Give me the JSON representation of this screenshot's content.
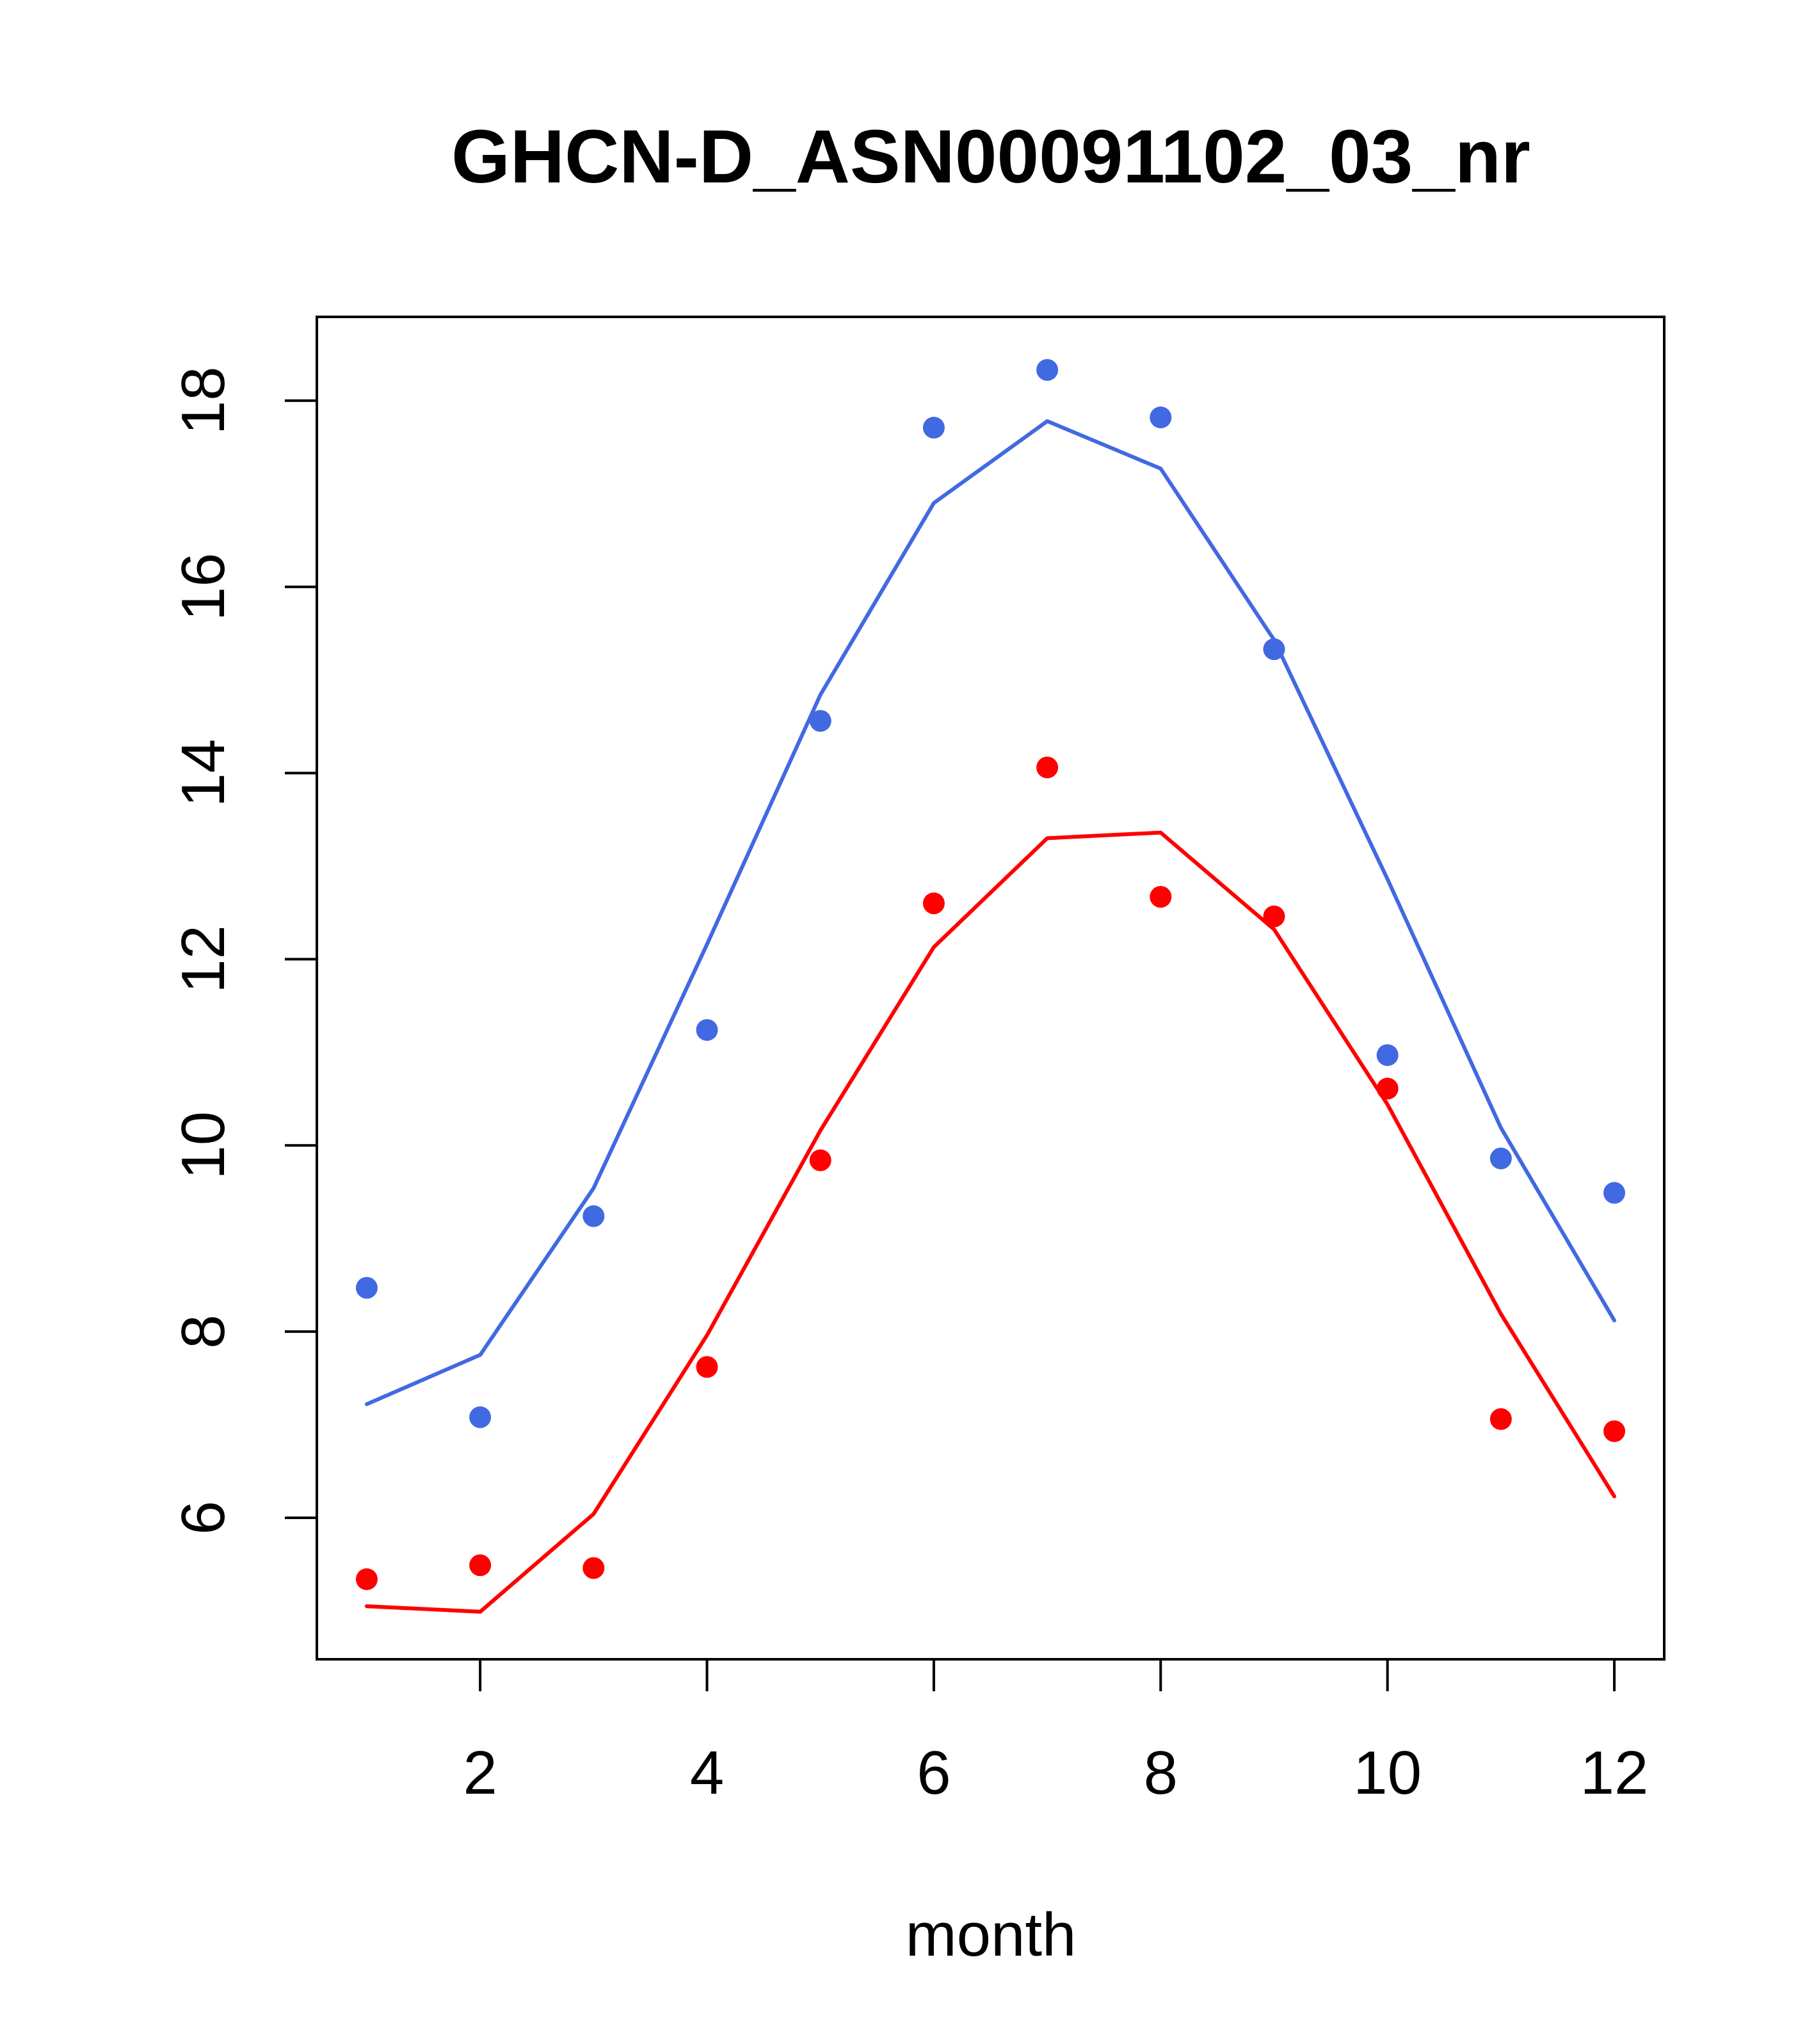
{
  "chart_data": {
    "type": "line",
    "title": "GHCN-D_ASN00091102_03_nr",
    "xlabel": "month",
    "ylabel": "",
    "xlim": [
      0.56,
      12.44
    ],
    "ylim": [
      4.48,
      18.9
    ],
    "xticks": [
      2,
      4,
      6,
      8,
      10,
      12
    ],
    "yticks": [
      6,
      8,
      10,
      12,
      14,
      16,
      18
    ],
    "grid": false,
    "legend": "none",
    "series": [
      {
        "color": "#4169E1",
        "points": {
          "x": [
            1,
            2,
            3,
            4,
            5,
            6,
            7,
            8,
            9,
            10,
            11,
            12
          ],
          "y": [
            8.47,
            7.08,
            9.24,
            11.24,
            14.56,
            17.71,
            18.33,
            17.82,
            15.33,
            10.97,
            9.86,
            9.49
          ]
        },
        "line": {
          "x": [
            1,
            2,
            3,
            4,
            5,
            6,
            7,
            8,
            9,
            10,
            11,
            12
          ],
          "y": [
            7.22,
            7.75,
            9.54,
            12.16,
            14.84,
            16.9,
            17.78,
            17.27,
            15.43,
            12.86,
            10.19,
            8.12
          ]
        }
      },
      {
        "color": "#FF0000",
        "points": {
          "x": [
            1,
            2,
            3,
            4,
            5,
            6,
            7,
            8,
            9,
            10,
            11,
            12
          ],
          "y": [
            5.34,
            5.49,
            5.46,
            7.62,
            9.84,
            12.6,
            14.06,
            12.67,
            12.46,
            10.61,
            7.06,
            6.93
          ]
        },
        "line": {
          "x": [
            1,
            2,
            3,
            4,
            5,
            6,
            7,
            8,
            9,
            10,
            11,
            12
          ],
          "y": [
            5.05,
            4.99,
            6.04,
            7.96,
            10.16,
            12.13,
            13.3,
            13.36,
            12.32,
            10.44,
            8.19,
            6.23
          ]
        }
      }
    ]
  }
}
